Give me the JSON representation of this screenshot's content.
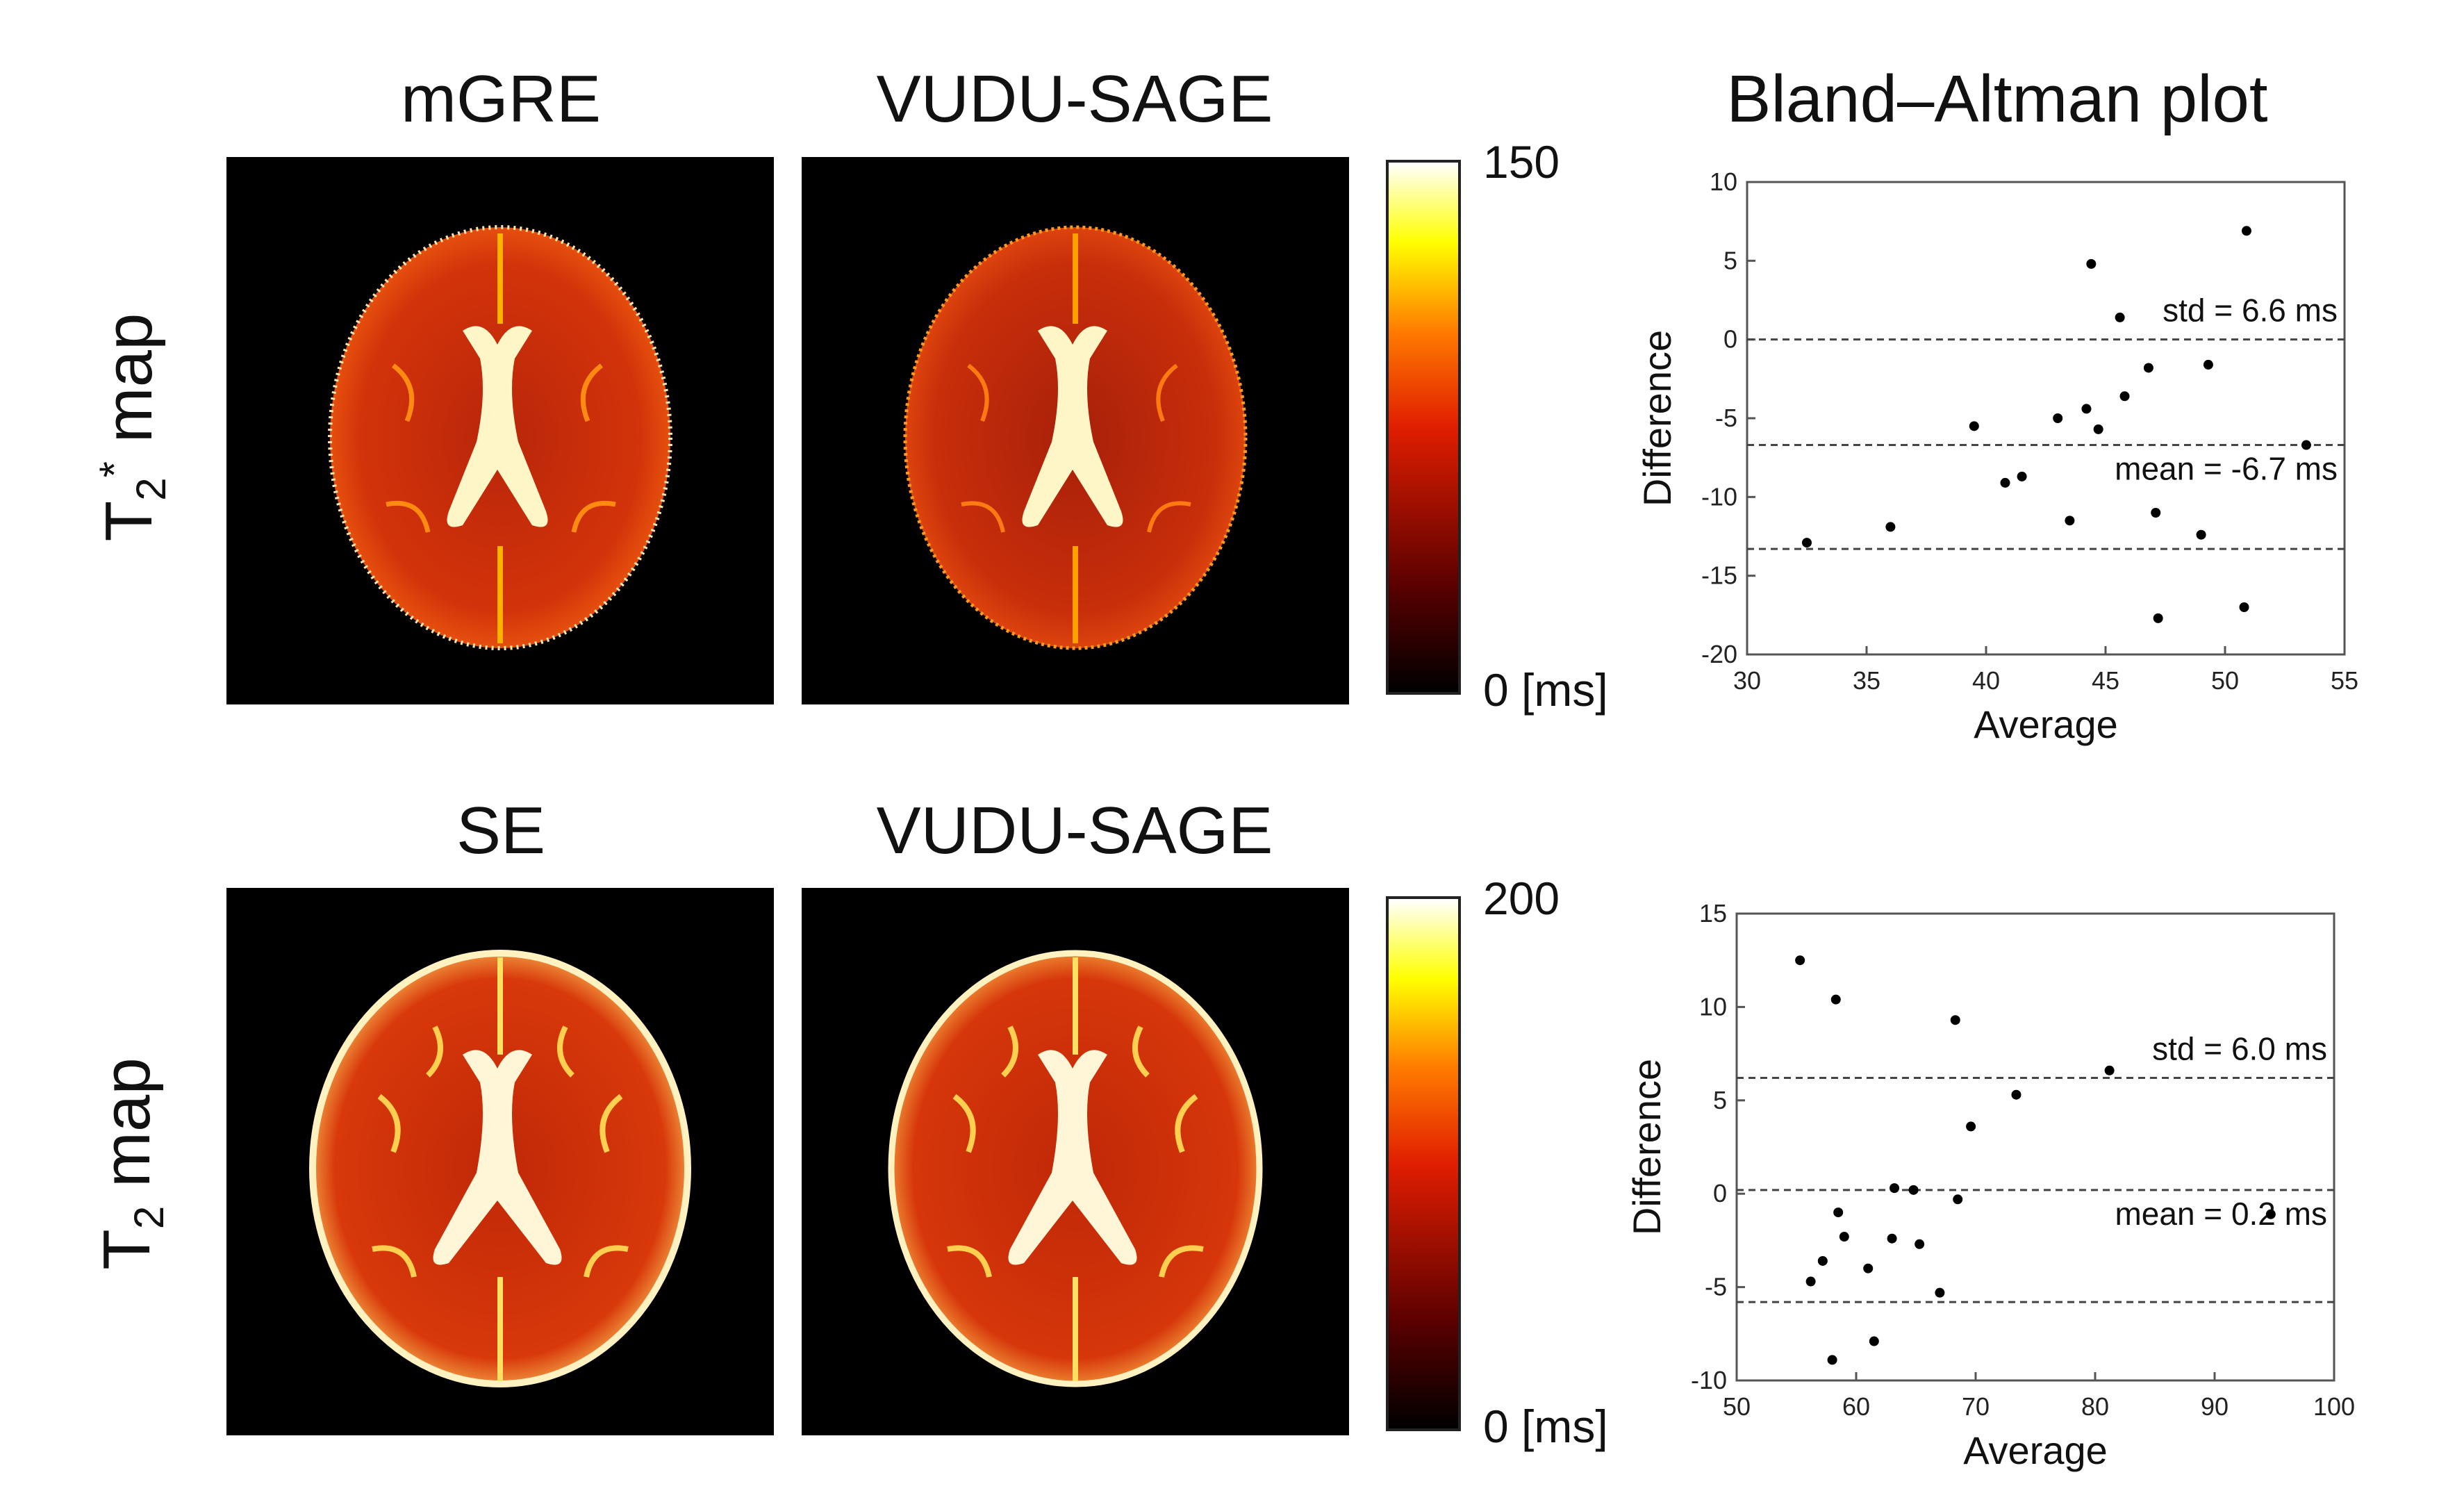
{
  "titles": {
    "col1_top": "mGRE",
    "col2_top": "VUDU-SAGE",
    "col1_bottom": "SE",
    "col2_bottom": "VUDU-SAGE",
    "ba": "Bland–Altman plot"
  },
  "row_labels": {
    "top": {
      "base": "T",
      "sub": "2",
      "sup": "*",
      "rest": " map"
    },
    "bottom": {
      "base": "T",
      "sub": "2",
      "rest": " map"
    }
  },
  "colorbars": {
    "top": {
      "max": "150",
      "min": "0 [ms]"
    },
    "bottom": {
      "max": "200",
      "min": "0 [ms]"
    }
  },
  "colors": {
    "map_low": "#000000",
    "map_mid": "#e01e00",
    "map_high": "#ffff00",
    "map_top": "#ffffff",
    "tissue": "#c62a05"
  },
  "chart_data": [
    {
      "type": "scatter",
      "title": "Bland–Altman plot",
      "xlabel": "Average",
      "ylabel": "Difference",
      "xlim": [
        30,
        55
      ],
      "ylim": [
        -20,
        10
      ],
      "xticks": [
        30,
        35,
        40,
        45,
        50,
        55
      ],
      "yticks": [
        -20,
        -15,
        -10,
        -5,
        0,
        5,
        10
      ],
      "x": [
        32.5,
        36.0,
        39.5,
        40.8,
        41.5,
        43.0,
        43.5,
        44.2,
        44.4,
        44.7,
        45.6,
        45.8,
        46.8,
        47.1,
        47.2,
        49.0,
        49.3,
        50.8,
        50.9,
        53.4
      ],
      "y": [
        -12.9,
        -11.9,
        -5.5,
        -9.1,
        -8.7,
        -5.0,
        -11.5,
        -4.4,
        4.8,
        -5.7,
        1.4,
        -3.6,
        -1.8,
        -11.0,
        -17.7,
        -12.4,
        -1.6,
        -17.0,
        6.9,
        -6.7
      ],
      "lines": [
        {
          "y": 0,
          "style": "dashed"
        },
        {
          "y": -6.7,
          "style": "dashed",
          "label": "mean = -6.7 ms"
        },
        {
          "y": -13.3,
          "style": "dashed"
        }
      ],
      "std_label": "std = 6.6 ms"
    },
    {
      "type": "scatter",
      "xlabel": "Average",
      "ylabel": "Difference",
      "xlim": [
        50,
        100
      ],
      "ylim": [
        -10,
        15
      ],
      "xticks": [
        50,
        60,
        70,
        80,
        90,
        100
      ],
      "yticks": [
        -10,
        -5,
        0,
        5,
        10,
        15
      ],
      "x": [
        55.3,
        56.2,
        57.2,
        58.0,
        58.3,
        58.5,
        59.0,
        61.0,
        61.5,
        63.0,
        63.2,
        64.8,
        65.3,
        67.0,
        68.3,
        68.5,
        69.6,
        73.4,
        81.2,
        94.7
      ],
      "y": [
        12.5,
        -4.7,
        -3.6,
        -8.9,
        10.4,
        -1.0,
        -2.3,
        -4.0,
        -7.9,
        -2.4,
        0.3,
        0.2,
        -2.7,
        -5.3,
        9.3,
        -0.3,
        3.6,
        5.3,
        6.6,
        -1.1
      ],
      "lines": [
        {
          "y": 6.2,
          "style": "dashed"
        },
        {
          "y": 0.2,
          "style": "dashed",
          "label": "mean = 0.2 ms"
        },
        {
          "y": -5.8,
          "style": "dashed"
        }
      ],
      "std_label": "std = 6.0 ms"
    }
  ]
}
